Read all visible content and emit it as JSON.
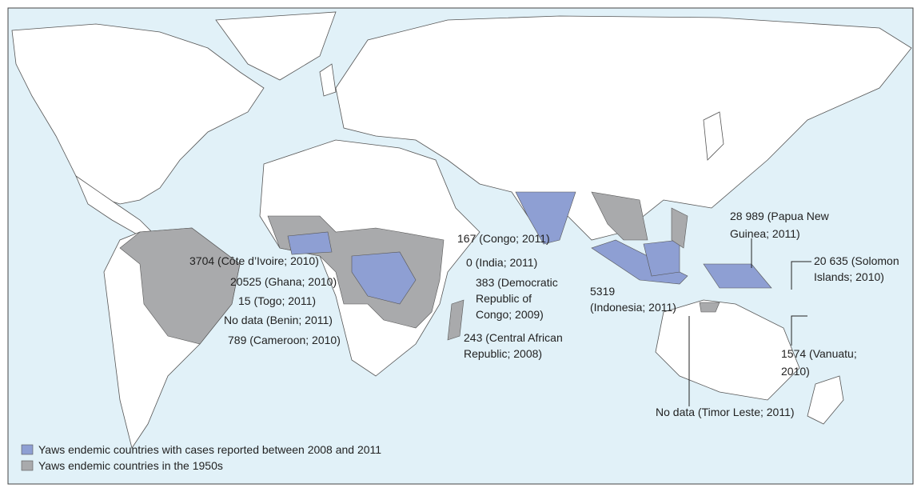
{
  "annotations": [
    {
      "lines": [
        "0 (India; 2011)"
      ]
    },
    {
      "lines": [
        "3704 (Côte d’Ivoire; 2010)"
      ]
    },
    {
      "lines": [
        "167 (Congo; 2011)"
      ]
    },
    {
      "lines": [
        "20525 (Ghana; 2010)"
      ]
    },
    {
      "lines": [
        "383 (Democratic",
        "Republic of",
        "Congo; 2009)"
      ]
    },
    {
      "lines": [
        "15 (Togo; 2011)"
      ]
    },
    {
      "lines": [
        "No data (Benin; 2011)"
      ]
    },
    {
      "lines": [
        "789 (Cameroon; 2010)"
      ]
    },
    {
      "lines": [
        "243 (Central African",
        "Republic; 2008)"
      ]
    },
    {
      "lines": [
        "5319",
        "(Indonesia; 2011)"
      ]
    },
    {
      "lines": [
        "28 989 (Papua New",
        "Guinea; 2011)"
      ]
    },
    {
      "lines": [
        "20 635 (Solomon",
        "Islands; 2010)"
      ]
    },
    {
      "lines": [
        "1574 (Vanuatu;",
        "2010)"
      ]
    },
    {
      "lines": [
        "No data (Timor Leste; 2011)"
      ]
    }
  ],
  "legend": [
    {
      "label": "Yaws endemic countries with cases reported between 2008 and 2011"
    },
    {
      "label": "Yaws endemic countries in the 1950s"
    }
  ]
}
